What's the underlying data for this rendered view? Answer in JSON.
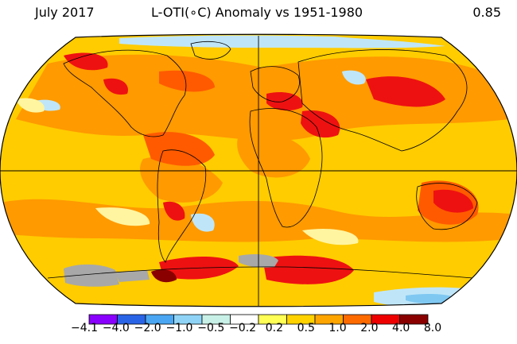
{
  "header": {
    "period": "July 2017",
    "title": "L-OTI(∘C) Anomaly vs 1951-1980",
    "global_mean": "0.85"
  },
  "legend": {
    "colors": [
      "#8a00ff",
      "#2a64e6",
      "#4aa6f2",
      "#8fd4f7",
      "#c8f0e6",
      "#ffffff",
      "#ffff55",
      "#ffd200",
      "#ffa500",
      "#ff6a00",
      "#ee0000",
      "#8a0000"
    ],
    "labels": [
      "−4.1",
      "−4.0",
      "−2.0",
      "−1.0",
      "−0.5",
      "−0.2",
      "0.2",
      "0.5",
      "1.0",
      "2.0",
      "4.0",
      "8.0"
    ]
  },
  "map_colors": {
    "base": "#ffcc00",
    "warm": "#ff9a00",
    "hot": "#ff5a00",
    "very_hot": "#ee1111",
    "extreme": "#8a0000",
    "cool": "#bfe6f8",
    "cooler": "#7fc8f2",
    "pale": "#fff5a0",
    "no_data": "#a8a8a8"
  }
}
